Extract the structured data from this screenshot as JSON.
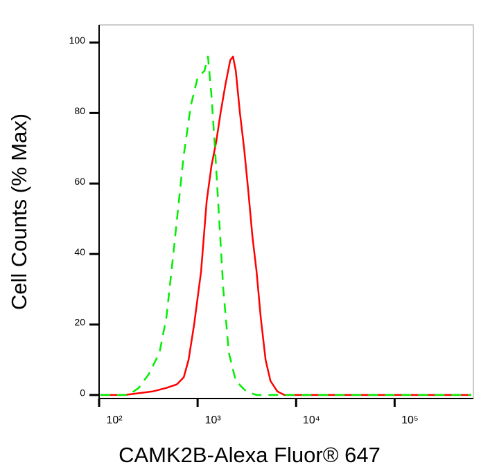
{
  "chart_data": {
    "type": "line",
    "x_label": "CAMK2B-Alexa Fluor® 647",
    "y_label": "Cell Counts (% Max)",
    "xscale": "log",
    "xlim": [
      100,
      630000
    ],
    "ylim": [
      -1,
      105
    ],
    "xticks": [
      {
        "value": 100,
        "label": "10²"
      },
      {
        "value": 1000,
        "label": "10³"
      },
      {
        "value": 10000,
        "label": "10⁴"
      },
      {
        "value": 100000,
        "label": "10⁵"
      }
    ],
    "yticks": [
      0,
      20,
      40,
      60,
      80,
      100
    ],
    "grid": false,
    "series": [
      {
        "color": "#ff0000",
        "dashed": false,
        "x": [
          103,
          182,
          349,
          482,
          615,
          723,
          810,
          922,
          1084,
          1235,
          1383,
          1549,
          1708,
          1913,
          2143,
          2287,
          2440,
          2689,
          2964,
          3267,
          3601,
          3968,
          4374,
          4898,
          5488,
          6455,
          7593,
          10500,
          32680,
          600000
        ],
        "values": [
          0,
          0,
          1,
          2,
          3,
          5,
          10,
          20,
          35,
          55,
          65,
          72,
          80,
          88,
          95,
          96,
          92,
          80,
          70,
          58,
          45,
          35,
          22,
          10,
          4,
          1,
          0,
          0,
          0,
          0
        ]
      },
      {
        "color": "#00ee00",
        "dashed": true,
        "x": [
          103,
          198,
          252,
          321,
          410,
          482,
          567,
          645,
          723,
          851,
          1000,
          1176,
          1275,
          1383,
          1500,
          1653,
          1823,
          2075,
          2440,
          3112,
          3968,
          600000
        ],
        "values": [
          0,
          0,
          2,
          6,
          12,
          22,
          40,
          55,
          68,
          82,
          90,
          92,
          96,
          85,
          70,
          50,
          30,
          12,
          4,
          1,
          0,
          0
        ]
      }
    ]
  }
}
